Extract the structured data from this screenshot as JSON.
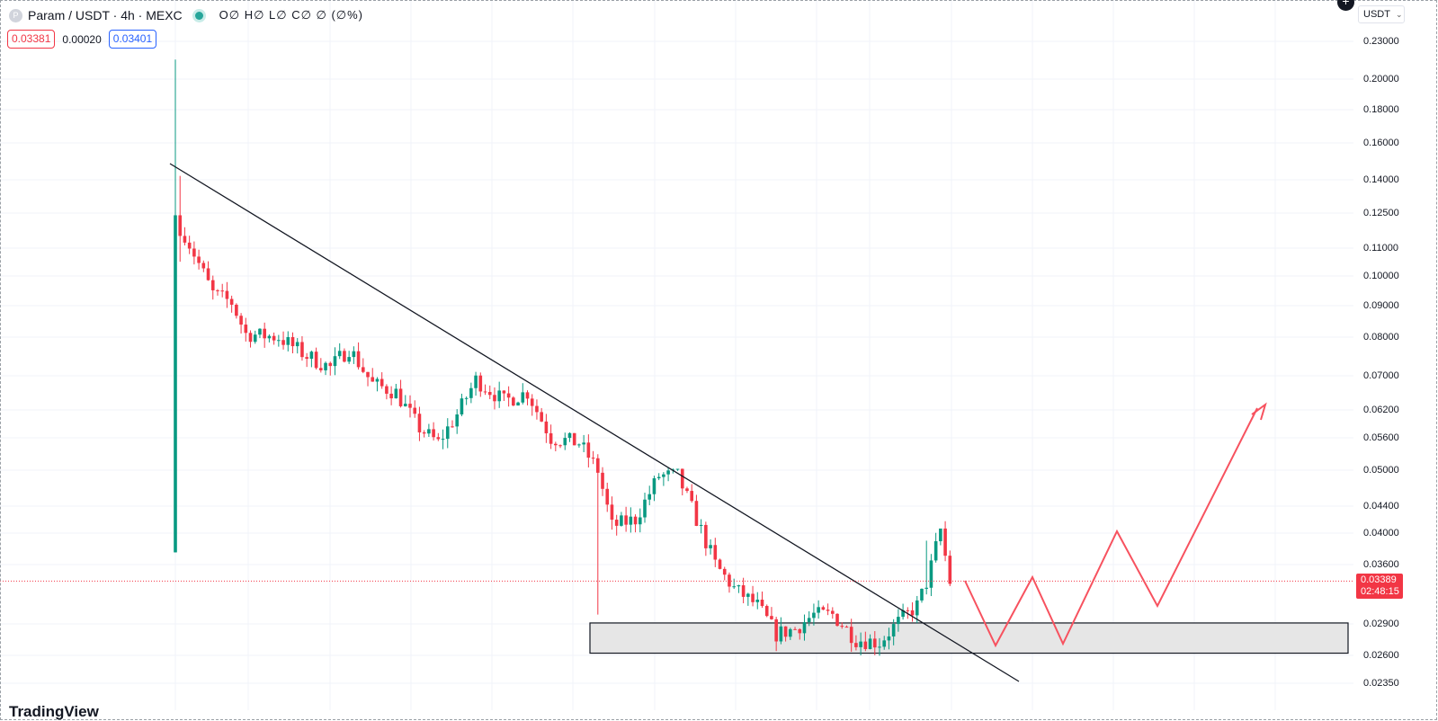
{
  "header": {
    "symbol_icon": "P",
    "symbol": "Param / USDT · 4h · MEXC",
    "ohlc": "O∅ H∅ L∅ C∅ ∅ (∅%)"
  },
  "spread": {
    "sell": "0.03381",
    "spread": "0.00020",
    "buy": "0.03401"
  },
  "toolbar": {
    "currency": "USDT",
    "add_icon": "plus-circle-icon"
  },
  "price_axis": [
    {
      "label": "0.23000",
      "value": 0.23
    },
    {
      "label": "0.20000",
      "value": 0.2
    },
    {
      "label": "0.18000",
      "value": 0.18
    },
    {
      "label": "0.16000",
      "value": 0.16
    },
    {
      "label": "0.14000",
      "value": 0.14
    },
    {
      "label": "0.12500",
      "value": 0.125
    },
    {
      "label": "0.11000",
      "value": 0.11
    },
    {
      "label": "0.10000",
      "value": 0.1
    },
    {
      "label": "0.09000",
      "value": 0.09
    },
    {
      "label": "0.08000",
      "value": 0.08
    },
    {
      "label": "0.07000",
      "value": 0.07
    },
    {
      "label": "0.06200",
      "value": 0.062
    },
    {
      "label": "0.05600",
      "value": 0.056
    },
    {
      "label": "0.05000",
      "value": 0.05
    },
    {
      "label": "0.04400",
      "value": 0.044
    },
    {
      "label": "0.04000",
      "value": 0.04
    },
    {
      "label": "0.03600",
      "value": 0.036
    },
    {
      "label": "0.02900",
      "value": 0.029
    },
    {
      "label": "0.02600",
      "value": 0.026
    },
    {
      "label": "0.02350",
      "value": 0.0235
    }
  ],
  "last_price": {
    "value": "0.03389",
    "countdown": "02:48:15"
  },
  "watermark": "TradingView",
  "colors": {
    "up": "#089981",
    "down": "#f23645",
    "grid": "#f0f3fa",
    "projection": "#f7525f",
    "zone_fill": "#e6e6e6"
  },
  "chart_data": {
    "type": "candlestick",
    "interval": "4h",
    "scale": "log",
    "ylim": [
      0.0223,
      0.245
    ],
    "candle_count": 140,
    "candles_ohlc": [
      [
        0.0375,
        0.215,
        0.0375,
        0.124
      ],
      [
        0.124,
        0.142,
        0.105,
        0.115
      ],
      [
        0.115,
        0.118,
        0.098,
        0.102
      ],
      [
        0.102,
        0.103,
        0.087,
        0.096
      ],
      [
        0.096,
        0.108,
        0.093,
        0.1
      ],
      [
        0.1,
        0.103,
        0.092,
        0.094
      ],
      [
        0.094,
        0.101,
        0.091,
        0.099
      ],
      [
        0.099,
        0.1,
        0.093,
        0.095
      ]
    ],
    "trendline": [
      [
        0.148,
        "candle 0"
      ],
      [
        0.0225,
        "candle 134"
      ]
    ],
    "support_zone": [
      0.0262,
      0.0291
    ],
    "projection_path_prices": [
      0.0338,
      0.0269,
      0.0341,
      0.0269,
      0.0403,
      0.0312,
      0.0637,
      0.0619
    ],
    "last_price_line": 0.03389
  }
}
